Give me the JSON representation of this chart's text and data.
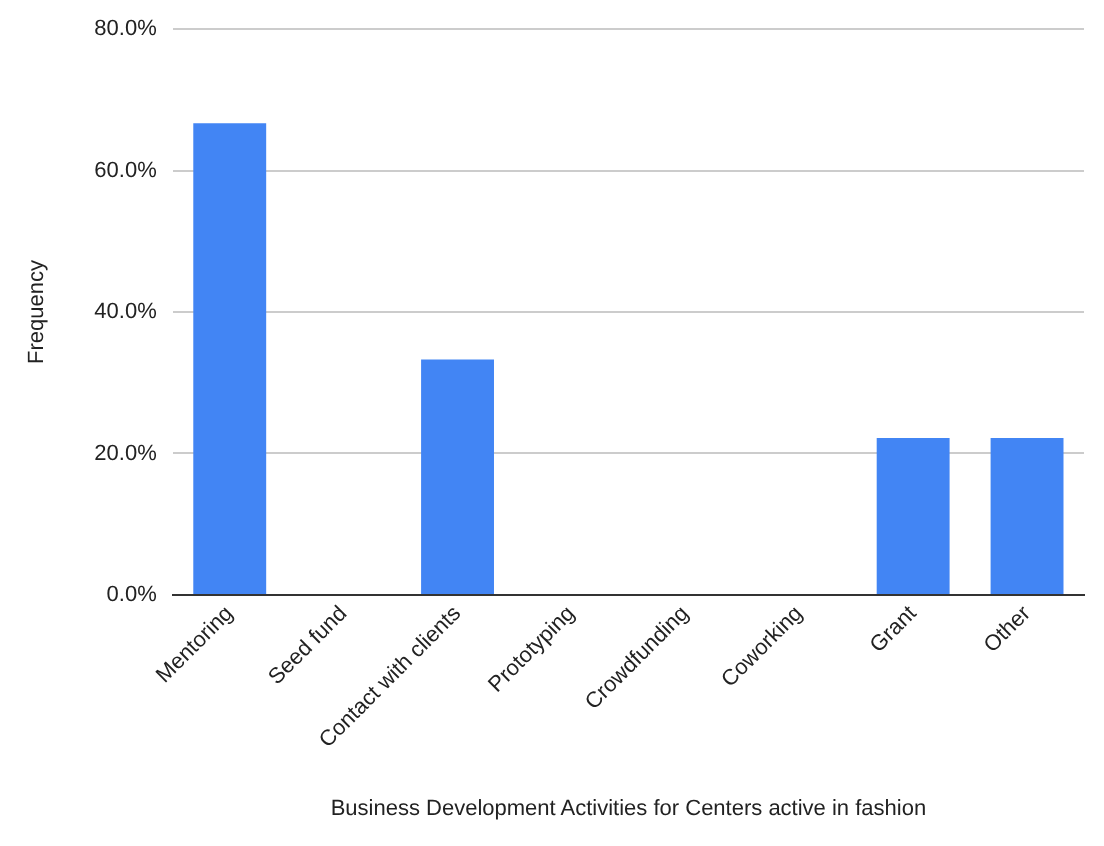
{
  "chart_data": {
    "type": "bar",
    "xlabel": "Business Development Activities for Centers active in fashion",
    "ylabel": "Frequency",
    "categories": [
      "Mentoring",
      "Seed fund",
      "Contact with clients",
      "Prototyping",
      "Crowdfunding",
      "Coworking",
      "Grant",
      "Other"
    ],
    "values": [
      66.7,
      0,
      33.3,
      0,
      0,
      0,
      22.2,
      22.2
    ],
    "color": "#4285f4",
    "ylim": [
      0,
      80
    ],
    "yticks": [
      {
        "value": 0,
        "label": "0.0%"
      },
      {
        "value": 20,
        "label": "20.0%"
      },
      {
        "value": 40,
        "label": "40.0%"
      },
      {
        "value": 60,
        "label": "60.0%"
      },
      {
        "value": 80,
        "label": "80.0%"
      }
    ],
    "grid": "y",
    "legend": false
  }
}
